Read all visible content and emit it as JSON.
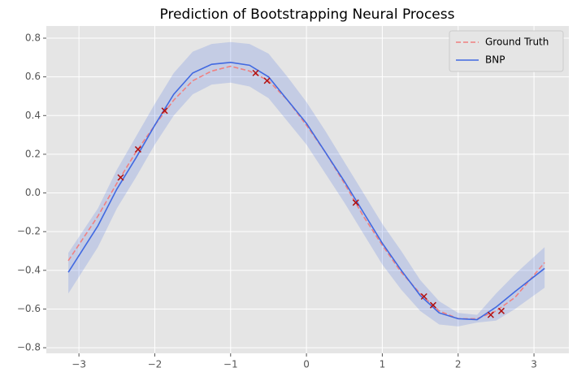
{
  "chart_data": {
    "type": "line",
    "title": "Prediction of Bootstrapping Neural Process",
    "xlim": [
      -3.43,
      3.46
    ],
    "ylim": [
      -0.829,
      0.863
    ],
    "xticks": [
      {
        "value": -3,
        "label": "−3"
      },
      {
        "value": -2,
        "label": "−2"
      },
      {
        "value": -1,
        "label": "−1"
      },
      0,
      1,
      2,
      3
    ],
    "yticks": [
      {
        "value": -0.8,
        "label": "−0.8"
      },
      {
        "value": -0.6,
        "label": "−0.6"
      },
      {
        "value": -0.4,
        "label": "−0.4"
      },
      {
        "value": -0.2,
        "label": "−0.2"
      },
      {
        "value": 0,
        "label": "0.0"
      },
      0.2,
      0.4,
      0.6,
      0.8
    ],
    "grid": true,
    "legend": "upper right",
    "series": [
      {
        "name": "Ground Truth",
        "color": "#f08080",
        "dash": true,
        "x": [
          -3.14,
          -2.75,
          -2.5,
          -2.25,
          -2,
          -1.75,
          -1.5,
          -1.25,
          -1,
          -0.75,
          -0.5,
          -0.25,
          0,
          0.25,
          0.5,
          0.75,
          1,
          1.25,
          1.5,
          1.75,
          2,
          2.25,
          2.5,
          2.75,
          3.14
        ],
        "values": [
          -0.35,
          -0.12,
          0.05,
          0.21,
          0.35,
          0.48,
          0.58,
          0.63,
          0.655,
          0.63,
          0.58,
          0.48,
          0.35,
          0.21,
          0.05,
          -0.12,
          -0.27,
          -0.41,
          -0.52,
          -0.61,
          -0.65,
          -0.65,
          -0.61,
          -0.54,
          -0.36
        ]
      },
      {
        "name": "BNP",
        "color": "#4169e1",
        "dash": false,
        "x": [
          -3.14,
          -2.75,
          -2.5,
          -2.25,
          -2,
          -1.75,
          -1.5,
          -1.25,
          -1,
          -0.75,
          -0.5,
          -0.25,
          0,
          0.25,
          0.5,
          0.75,
          1,
          1.25,
          1.5,
          1.75,
          2,
          2.25,
          2.5,
          2.75,
          3.14
        ],
        "values": [
          -0.41,
          -0.17,
          0.02,
          0.18,
          0.35,
          0.51,
          0.62,
          0.665,
          0.675,
          0.66,
          0.6,
          0.48,
          0.36,
          0.21,
          0.06,
          -0.1,
          -0.26,
          -0.4,
          -0.53,
          -0.62,
          -0.65,
          -0.655,
          -0.59,
          -0.51,
          -0.39
        ]
      }
    ],
    "band": {
      "color": "#4169e1",
      "upper": [
        -0.31,
        -0.08,
        0.12,
        0.29,
        0.46,
        0.62,
        0.73,
        0.77,
        0.78,
        0.77,
        0.72,
        0.6,
        0.47,
        0.32,
        0.16,
        0,
        -0.16,
        -0.3,
        -0.45,
        -0.56,
        -0.62,
        -0.63,
        -0.52,
        -0.42,
        -0.28
      ],
      "lower": [
        -0.52,
        -0.28,
        -0.08,
        0.08,
        0.25,
        0.4,
        0.51,
        0.56,
        0.57,
        0.55,
        0.49,
        0.37,
        0.25,
        0.1,
        -0.05,
        -0.21,
        -0.37,
        -0.5,
        -0.61,
        -0.68,
        -0.69,
        -0.67,
        -0.66,
        -0.6,
        -0.49
      ]
    },
    "points": {
      "color": "#b01010",
      "x": [
        -2.45,
        -2.22,
        -1.87,
        -0.67,
        -0.52,
        0.65,
        1.55,
        1.67,
        2.43,
        2.57
      ],
      "y": [
        0.08,
        0.225,
        0.425,
        0.62,
        0.58,
        -0.05,
        -0.535,
        -0.58,
        -0.63,
        -0.61
      ]
    }
  }
}
